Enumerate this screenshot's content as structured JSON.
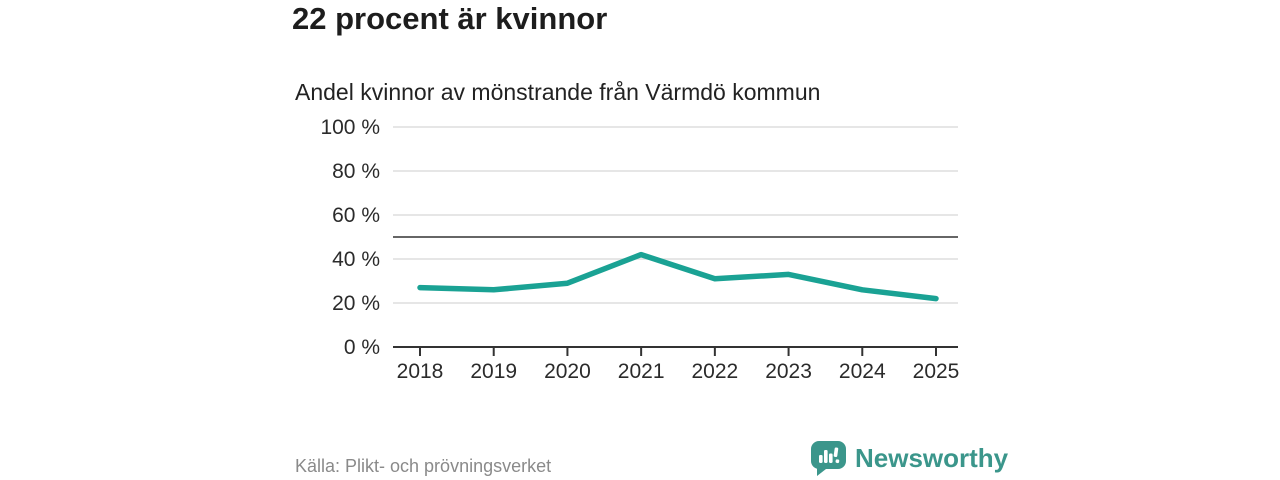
{
  "title": "22 procent är kvinnor",
  "chart_data": {
    "type": "line",
    "title": "Andel kvinnor av mönstrande från Värmdö kommun",
    "x": [
      "2018",
      "2019",
      "2020",
      "2021",
      "2022",
      "2023",
      "2024",
      "2025"
    ],
    "series": [
      {
        "name": "Andel kvinnor",
        "values": [
          27,
          26,
          29,
          42,
          31,
          33,
          26,
          22
        ]
      }
    ],
    "unit": "%",
    "ylim": [
      0,
      100
    ],
    "yticks": [
      0,
      20,
      40,
      60,
      80,
      100
    ],
    "ytick_suffix": " %",
    "reference_line": 50,
    "grid": true,
    "legend_position": "none",
    "xlabel": "",
    "ylabel": ""
  },
  "footer": {
    "source": "Källa: Plikt- och prövningsverket",
    "brand": "Newsworthy"
  },
  "colors": {
    "line": "#1aa294",
    "grid": "#dddddd",
    "reference": "#666666",
    "axis": "#333333",
    "axis_text": "#2b2b2b",
    "brand_teal": "#3b968b"
  }
}
